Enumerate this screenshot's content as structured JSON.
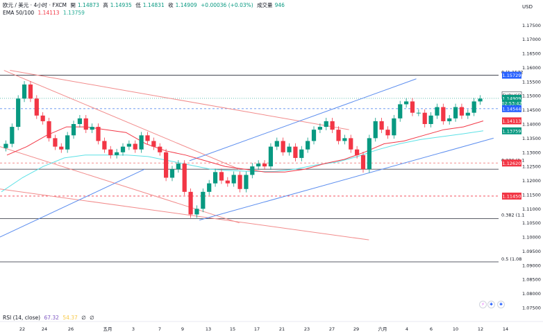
{
  "header": {
    "symbol": "欧元 / 美元 · 4小时 · FXCM",
    "open_label": "開",
    "open": "1.14873",
    "high_label": "高",
    "high": "1.14935",
    "low_label": "低",
    "low": "1.14831",
    "close_label": "收",
    "close": "1.14909",
    "change": "+0.00036 (+0.03%)",
    "volume_label": "成交量",
    "volume": "946",
    "ema_label": "EMA 50/100",
    "ema50": "1.14113",
    "ema100": "1.13759"
  },
  "currency": "USD",
  "rsi": {
    "label": "RSI (14, close)",
    "v1": "67.32",
    "v2": "54.37",
    "v3": "∅",
    "v4": "∅"
  },
  "colors": {
    "up": "#089981",
    "down": "#f23645",
    "ema50": "#f23645",
    "ema100": "#5ce1e6",
    "channel": "#5b8def",
    "downtrend": "#f28b8b",
    "blue_tag": "#2962ff"
  },
  "price_axis": [
    "1.17500",
    "1.17000",
    "1.16500",
    "1.16000",
    "1.15500",
    "1.15000",
    "1.14500",
    "1.14000",
    "1.13500",
    "1.13000",
    "1.12500",
    "1.12000",
    "1.11500",
    "1.11000",
    "1.10500",
    "1.10000",
    "1.09500",
    "1.09000",
    "1.08500",
    "1.08000",
    "1.07500"
  ],
  "price_tags": [
    {
      "text": "1.15729",
      "price": 1.15729,
      "color": "#2962ff"
    },
    {
      "text": "EURUSD",
      "price": 1.1502,
      "color": "#131722",
      "bg": "#ffffff"
    },
    {
      "text": "1.14909",
      "price": 1.14909,
      "color": "#089981"
    },
    {
      "text": "02:53:42",
      "price": 1.1474,
      "color": "#089981"
    },
    {
      "text": "1.14544",
      "price": 1.14544,
      "color": "#2962ff"
    },
    {
      "text": "1.14113",
      "price": 1.14113,
      "color": "#f23645"
    },
    {
      "text": "1.13759",
      "price": 1.13759,
      "color": "#089981"
    },
    {
      "text": "1.12620",
      "price": 1.1262,
      "color": "#f23645"
    },
    {
      "text": "1.11450",
      "price": 1.1145,
      "color": "#f23645"
    }
  ],
  "x_labels": [
    "22",
    "24",
    "26",
    "五月",
    "3",
    "7",
    "9",
    "13",
    "15",
    "17",
    "21",
    "23",
    "27",
    "29",
    "六月",
    "4",
    "6",
    "10",
    "12",
    "14"
  ],
  "fib_labels": [
    {
      "text": "0 (1.1572",
      "price": 1.15729
    },
    {
      "text": "0.236 (1.1",
      "price": 1.1262
    },
    {
      "text": "0.382 (1.1",
      "price": 1.1068
    },
    {
      "text": "0.5 (1.08",
      "price": 1.0912
    }
  ],
  "chart_data": {
    "type": "candlestick",
    "symbol": "EURUSD",
    "timeframe": "4h",
    "ylim": [
      1.075,
      1.179
    ],
    "price_tick_step": 0.005,
    "horizontal_levels": [
      1.15729,
      1.14544,
      1.1262,
      1.124,
      1.1145,
      1.1065,
      1.0912
    ],
    "path": [
      1.133,
      1.139,
      1.149,
      1.154,
      1.149,
      1.143,
      1.141,
      1.135,
      1.132,
      1.131,
      1.136,
      1.14,
      1.142,
      1.138,
      1.139,
      1.134,
      1.131,
      1.129,
      1.13,
      1.132,
      1.133,
      1.131,
      1.136,
      1.134,
      1.132,
      1.13,
      1.121,
      1.124,
      1.126,
      1.116,
      1.108,
      1.11,
      1.116,
      1.119,
      1.123,
      1.12,
      1.119,
      1.122,
      1.117,
      1.122,
      1.125,
      1.126,
      1.125,
      1.132,
      1.134,
      1.13,
      1.132,
      1.128,
      1.131,
      1.134,
      1.138,
      1.139,
      1.141,
      1.138,
      1.134,
      1.135,
      1.131,
      1.129,
      1.124,
      1.135,
      1.141,
      1.138,
      1.136,
      1.142,
      1.147,
      1.148,
      1.144,
      1.144,
      1.14,
      1.143,
      1.146,
      1.141,
      1.142,
      1.146,
      1.143,
      1.144,
      1.148,
      1.149
    ],
    "ema50_approx": [
      1.129,
      1.132,
      1.136,
      1.139,
      1.139,
      1.138,
      1.137,
      1.133,
      1.1305,
      1.129,
      1.127,
      1.125,
      1.124,
      1.123,
      1.123,
      1.124,
      1.126,
      1.1275,
      1.13,
      1.133,
      1.134,
      1.136,
      1.138,
      1.139,
      1.1411
    ],
    "ema100_approx": [
      1.116,
      1.121,
      1.125,
      1.128,
      1.129,
      1.129,
      1.129,
      1.1285,
      1.127,
      1.1255,
      1.124,
      1.1235,
      1.1232,
      1.1232,
      1.124,
      1.1255,
      1.1265,
      1.1285,
      1.131,
      1.133,
      1.1345,
      1.1355,
      1.1365,
      1.1376
    ],
    "trendlines": [
      {
        "name": "downtrend-1",
        "from": [
          0.008,
          1.159
        ],
        "to": [
          0.48,
          1.124
        ]
      },
      {
        "name": "downtrend-2",
        "from": [
          0.02,
          1.159
        ],
        "to": [
          0.7,
          1.138
        ]
      },
      {
        "name": "downtrend-3",
        "from": [
          0.0,
          1.132
        ],
        "to": [
          0.48,
          1.105
        ]
      },
      {
        "name": "downtrend-4",
        "from": [
          0.0,
          1.117
        ],
        "to": [
          0.74,
          1.099
        ]
      },
      {
        "name": "channel-upper",
        "from": [
          0.38,
          1.127
        ],
        "to": [
          0.835,
          1.156
        ]
      },
      {
        "name": "channel-lower",
        "from": [
          0.4,
          1.106
        ],
        "to": [
          0.99,
          1.135
        ]
      },
      {
        "name": "channel-outer",
        "from": [
          0.0,
          1.1
        ],
        "to": [
          0.29,
          1.124
        ]
      }
    ]
  }
}
